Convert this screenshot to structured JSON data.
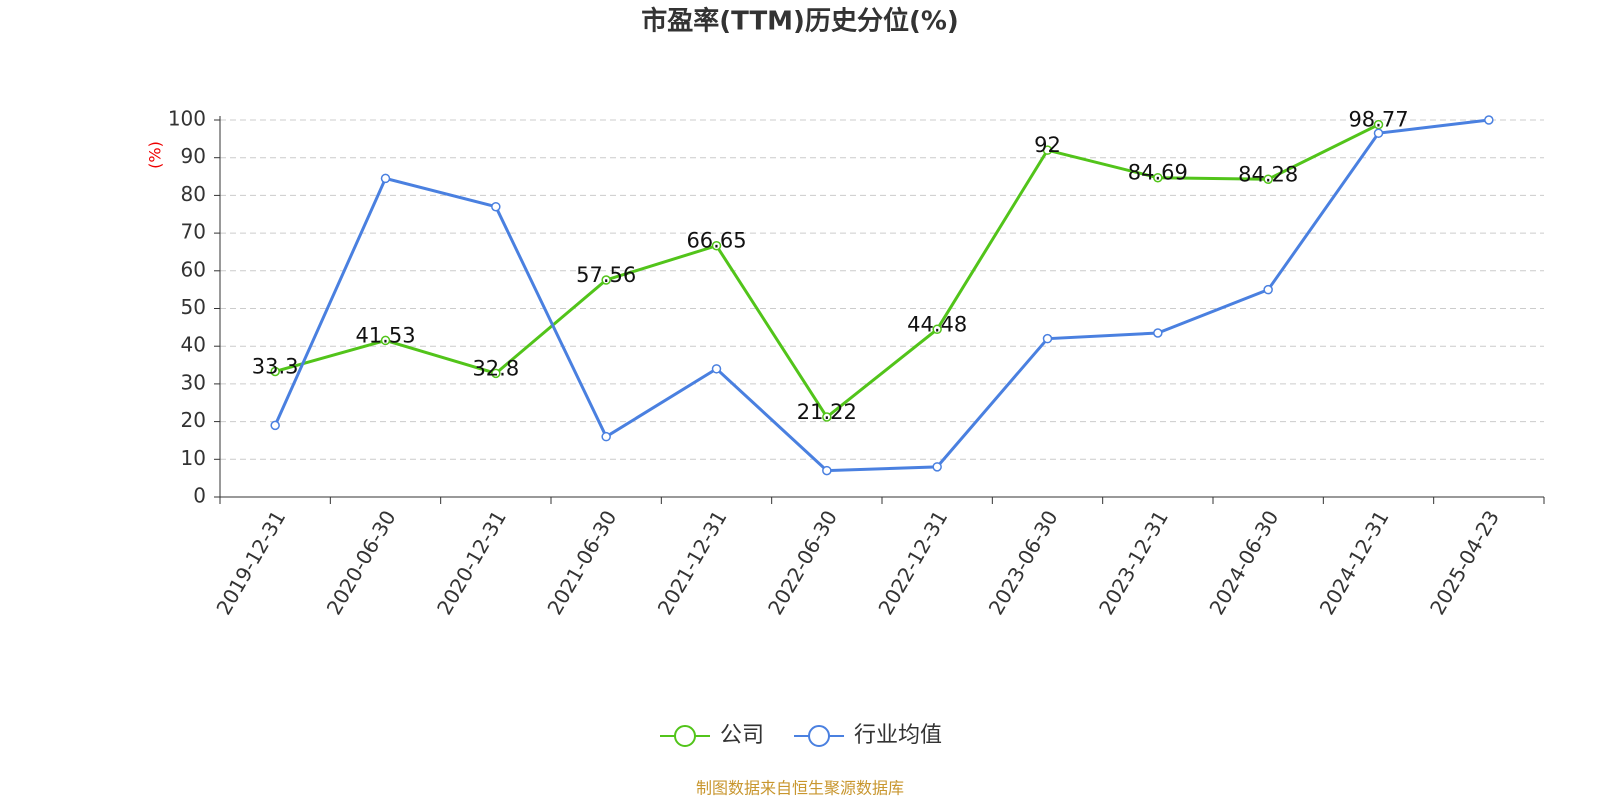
{
  "chart_data": {
    "type": "line",
    "title": "市盈率(TTM)历史分位(%)",
    "y_label": "(%)",
    "source": "制图数据来自恒生聚源数据库",
    "categories": [
      "2019-12-31",
      "2020-06-30",
      "2020-12-31",
      "2021-06-30",
      "2021-12-31",
      "2022-06-30",
      "2022-12-31",
      "2023-06-30",
      "2023-12-31",
      "2024-06-30",
      "2024-12-31",
      "2025-04-23"
    ],
    "series": [
      {
        "name": "公司",
        "color": "#52c41a",
        "show_labels": true,
        "values": [
          33.3,
          41.53,
          32.8,
          57.56,
          66.65,
          21.22,
          44.48,
          92,
          84.69,
          84.28,
          98.77,
          null
        ]
      },
      {
        "name": "行业均值",
        "color": "#4a80e0",
        "show_labels": false,
        "values": [
          19,
          84.5,
          77,
          16,
          34,
          7,
          8,
          42,
          43.5,
          55,
          96.5,
          100
        ]
      }
    ],
    "ylim": [
      0,
      100
    ],
    "yticks": [
      0,
      10,
      20,
      30,
      40,
      50,
      60,
      70,
      80,
      90,
      100
    ],
    "grid": true,
    "legend": "bottom"
  }
}
